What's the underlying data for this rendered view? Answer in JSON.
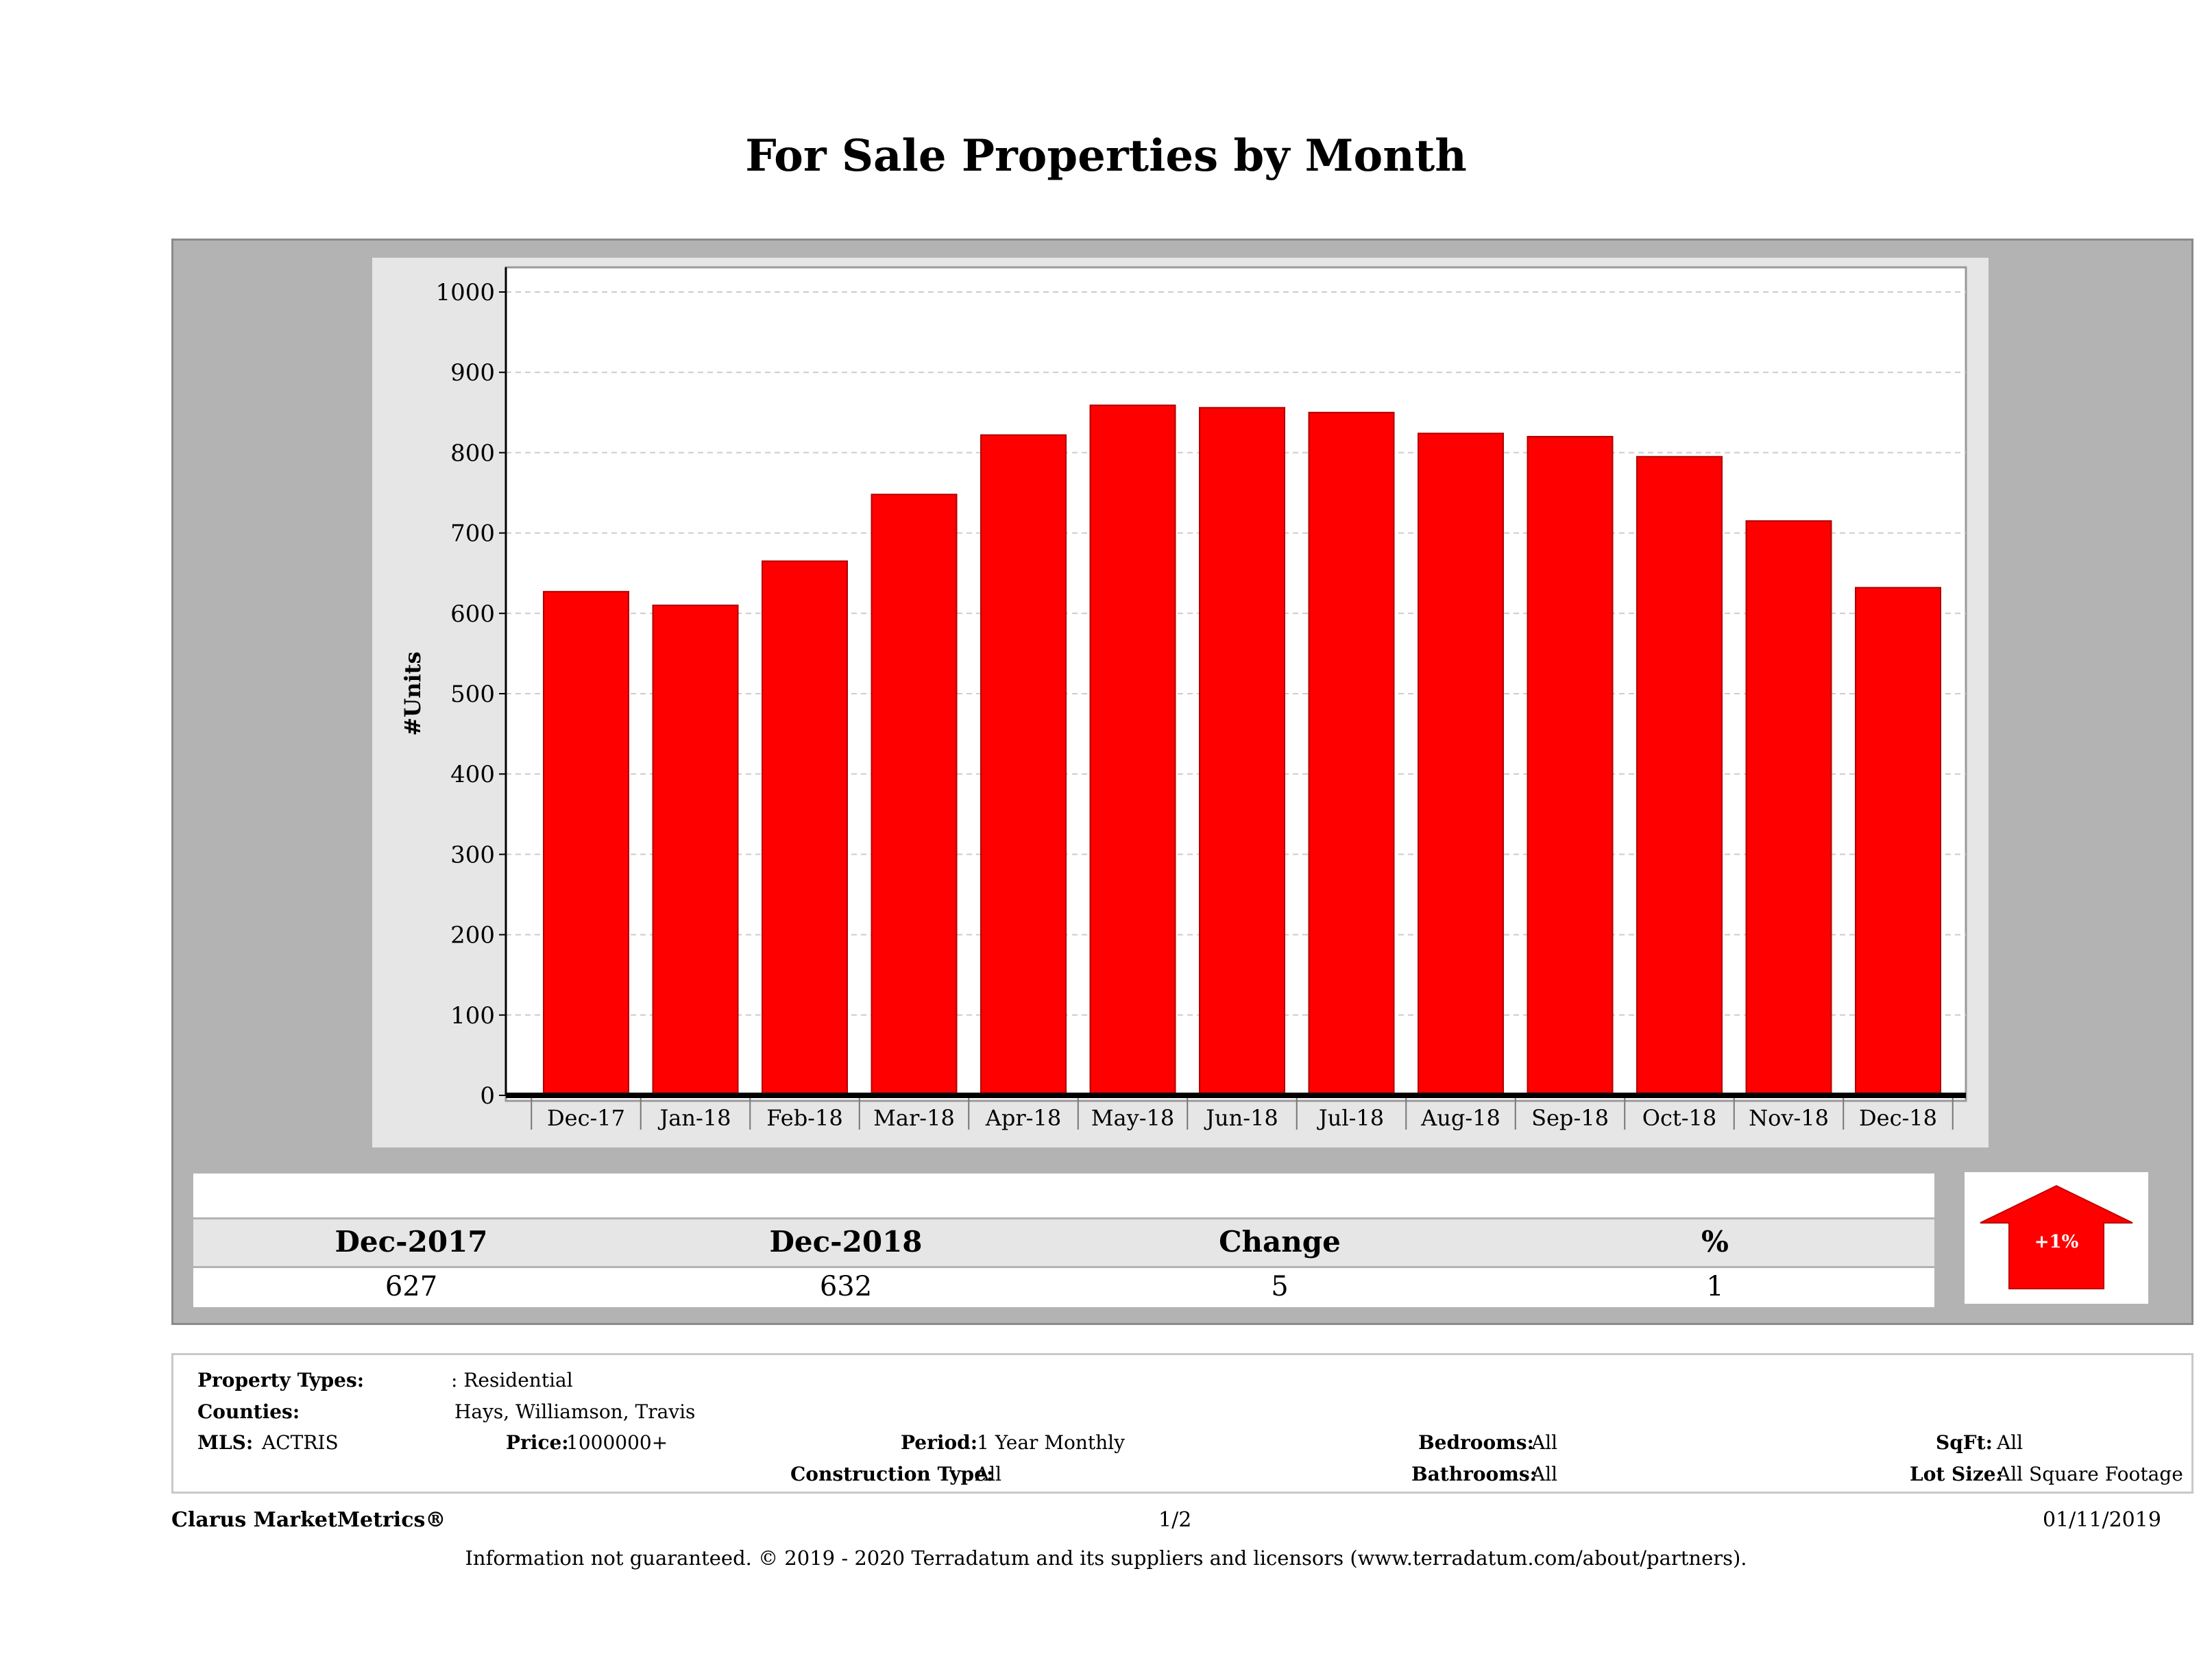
{
  "title": "For Sale Properties by Month",
  "chart_data": {
    "type": "bar",
    "title": "For Sale Properties by Month",
    "ylabel": "#Units",
    "xlabel": "",
    "categories": [
      "Dec-17",
      "Jan-18",
      "Feb-18",
      "Mar-18",
      "Apr-18",
      "May-18",
      "Jun-18",
      "Jul-18",
      "Aug-18",
      "Sep-18",
      "Oct-18",
      "Nov-18",
      "Dec-18"
    ],
    "values": [
      627,
      610,
      665,
      748,
      822,
      859,
      856,
      850,
      824,
      820,
      795,
      715,
      632
    ],
    "ylim": [
      0,
      1000
    ],
    "yticks": [
      0,
      100,
      200,
      300,
      400,
      500,
      600,
      700,
      800,
      900,
      1000
    ],
    "grid": true,
    "bar_color": "#ff0000"
  },
  "summary": {
    "headers": [
      "Dec-2017",
      "Dec-2018",
      "Change",
      "%"
    ],
    "values": [
      "627",
      "632",
      "5",
      "1"
    ],
    "badge": "+1%",
    "badge_color": "#ff0000"
  },
  "info": {
    "property_types_label": "Property Types:",
    "property_types_value": ": Residential",
    "counties_label": "Counties:",
    "counties_value": "Hays, Williamson, Travis",
    "mls_label": "MLS:",
    "mls_value": "ACTRIS",
    "price_label": "Price:",
    "price_value": "1000000+",
    "period_label": "Period:",
    "period_value": "1 Year Monthly",
    "construction_label": "Construction Type:",
    "construction_value": "All",
    "bedrooms_label": "Bedrooms:",
    "bedrooms_value": "All",
    "bathrooms_label": "Bathrooms:",
    "bathrooms_value": "All",
    "sqft_label": "SqFt:",
    "sqft_value": "All",
    "lotsize_label": "Lot Size:",
    "lotsize_value": "All Square Footage"
  },
  "footer": {
    "brand": "Clarus MarketMetrics®",
    "page": "1/2",
    "date": "01/11/2019",
    "disclaimer": "Information not guaranteed. © 2019 - 2020 Terradatum and its suppliers and licensors (www.terradatum.com/about/partners)."
  }
}
